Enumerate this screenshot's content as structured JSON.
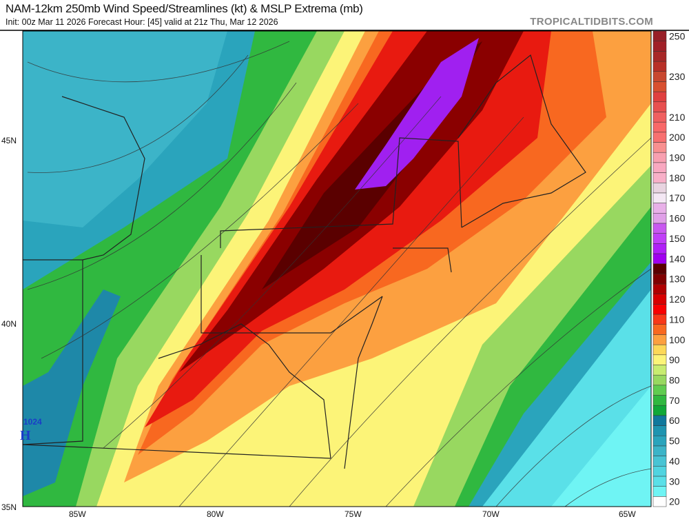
{
  "header": {
    "title": "NAM-12km 250mb Wind Speed/Streamlines (kt) & MSLP Extrema (mb)",
    "subtitle": "Init: 00z Mar 11 2026   Forecast Hour: [45]   valid at 21z Thu, Mar 12 2026",
    "brand": "TROPICALTIDBITS.COM"
  },
  "axes": {
    "lat_labels": [
      "45N",
      "40N",
      "35N"
    ],
    "lon_labels": [
      "85W",
      "80W",
      "75W",
      "70W",
      "65W"
    ]
  },
  "pressure_extrema": [
    {
      "type": "H",
      "value": "1024",
      "color": "#1a3cc8"
    }
  ],
  "colorbar": {
    "unit": "kt",
    "levels": [
      20,
      25,
      30,
      35,
      40,
      45,
      50,
      55,
      60,
      65,
      70,
      75,
      80,
      85,
      90,
      95,
      100,
      105,
      110,
      115,
      120,
      125,
      130,
      135,
      140,
      145,
      150,
      155,
      160,
      165,
      170,
      175,
      180,
      185,
      190,
      195,
      200,
      205,
      210,
      215,
      220,
      225,
      230,
      235,
      240,
      245,
      250
    ],
    "colors": [
      "#ffffff",
      "#6ff4f4",
      "#5ae0e8",
      "#50d4e0",
      "#48c4d4",
      "#3cb4c8",
      "#2aa4bc",
      "#1e94b0",
      "#10789c",
      "#10a838",
      "#30b840",
      "#60cc50",
      "#98d860",
      "#c8ec70",
      "#fcf478",
      "#fcd858",
      "#fca040",
      "#f86820",
      "#f83818",
      "#f80000",
      "#d80000",
      "#b00000",
      "#800000",
      "#5a0000",
      "#a000f0",
      "#b020f8",
      "#c040f8",
      "#c858f0",
      "#e0a0e8",
      "#e8b0e8",
      "#f4e8f4",
      "#e8d4e0",
      "#f8b0c8",
      "#f8a8c0",
      "#f8a0b0",
      "#f89090",
      "#f87070",
      "#f86868",
      "#f06060",
      "#e85050",
      "#e04040",
      "#d85030",
      "#c84830",
      "#b83028",
      "#a82828",
      "#a02028",
      "#982028"
    ],
    "labels": [
      "20",
      "30",
      "40",
      "50",
      "60",
      "70",
      "80",
      "90",
      "100",
      "110",
      "120",
      "130",
      "140",
      "150",
      "160",
      "170",
      "180",
      "190",
      "200",
      "210",
      "230",
      "250"
    ]
  }
}
